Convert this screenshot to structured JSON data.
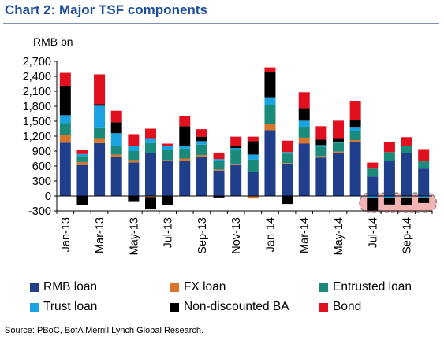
{
  "header": {
    "title": "Chart 2: Major TSF components"
  },
  "source": "Source: PBoC, BofA Merrill Lynch Global Research.",
  "colors": {
    "rmb_loan": "#1f3f8c",
    "fx_loan": "#d9742b",
    "entrusted_loan": "#1a8a7a",
    "trust_loan": "#1aa3e0",
    "non_discounted_ba": "#000000",
    "bond": "#e0101e",
    "highlight_fill": "#f4b3b3",
    "highlight_stroke": "#8a8a8a"
  },
  "chart_data": {
    "type": "bar",
    "stacked": true,
    "title": "Chart 2: Major TSF components",
    "ylabel": "RMB bn",
    "ylim": [
      -300,
      2700
    ],
    "yticks": [
      -300,
      0,
      300,
      600,
      900,
      1200,
      1500,
      1800,
      2100,
      2400,
      2700
    ],
    "ytick_labels": [
      "-300",
      "0",
      "300",
      "600",
      "900",
      "1,200",
      "1,500",
      "1,800",
      "2,100",
      "2,400",
      "2,700"
    ],
    "categories": [
      "Jan-13",
      "Feb-13",
      "Mar-13",
      "Apr-13",
      "May-13",
      "Jun-13",
      "Jul-13",
      "Aug-13",
      "Sep-13",
      "Oct-13",
      "Nov-13",
      "Dec-13",
      "Jan-14",
      "Feb-14",
      "Mar-14",
      "Apr-14",
      "May-14",
      "Jun-14",
      "Jul-14",
      "Aug-14",
      "Sep-14",
      "Oct-14"
    ],
    "xtick_labels": [
      "Jan-13",
      "Mar-13",
      "May-13",
      "Jul-13",
      "Sep-13",
      "Nov-13",
      "Jan-14",
      "Mar-14",
      "May-14",
      "Jul-14",
      "Sep-14"
    ],
    "legend_position": "bottom",
    "series": [
      {
        "name": "RMB loan",
        "color_key": "rmb_loan",
        "values": [
          1070,
          620,
          1060,
          790,
          670,
          860,
          700,
          710,
          790,
          510,
          620,
          480,
          1320,
          640,
          1050,
          770,
          870,
          1080,
          390,
          700,
          860,
          550
        ]
      },
      {
        "name": "FX loan",
        "color_key": "fx_loan",
        "values": [
          160,
          60,
          100,
          40,
          50,
          -20,
          20,
          40,
          30,
          20,
          10,
          -50,
          130,
          20,
          120,
          30,
          20,
          40,
          -10,
          -5,
          -20,
          -10
        ]
      },
      {
        "name": "Entrusted loan",
        "color_key": "entrusted_loan",
        "values": [
          230,
          120,
          200,
          170,
          180,
          200,
          210,
          200,
          210,
          170,
          290,
          250,
          370,
          190,
          220,
          190,
          180,
          180,
          160,
          180,
          150,
          160
        ]
      },
      {
        "name": "Trust loan",
        "color_key": "trust_loan",
        "values": [
          160,
          40,
          450,
          260,
          110,
          100,
          70,
          50,
          70,
          40,
          40,
          100,
          160,
          30,
          120,
          30,
          20,
          70,
          -30,
          -25,
          -20,
          -20
        ]
      },
      {
        "name": "Non-discounted BA",
        "color_key": "non_discounted_ba",
        "values": [
          590,
          -180,
          30,
          220,
          -120,
          -250,
          -180,
          400,
          90,
          -30,
          40,
          270,
          500,
          -160,
          250,
          110,
          70,
          160,
          -250,
          -140,
          -150,
          -110
        ]
      },
      {
        "name": "Bond",
        "color_key": "bond",
        "values": [
          260,
          90,
          600,
          230,
          230,
          190,
          50,
          210,
          150,
          130,
          190,
          90,
          100,
          230,
          320,
          270,
          350,
          380,
          120,
          200,
          170,
          230
        ]
      }
    ],
    "highlight": {
      "from": "Jul-14",
      "to": "Oct-14",
      "shape": "rounded-dashed-box",
      "ymin": -330,
      "ymax": 60
    }
  }
}
